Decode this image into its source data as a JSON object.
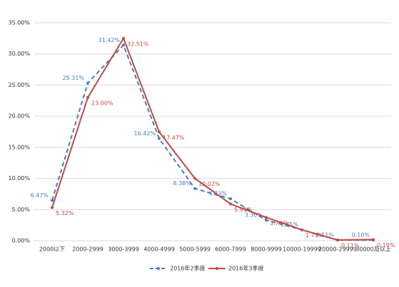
{
  "chart_data": {
    "type": "line",
    "categories": [
      "2000以下",
      "2000-2999",
      "3000-3999",
      "4000-4999",
      "5000-5999",
      "6000-7999",
      "8000-9999",
      "10000-19999",
      "20000-29999",
      "30000及以上"
    ],
    "series": [
      {
        "name": "2016年2季度",
        "color": "#4a7ebb",
        "dashed": true,
        "values": [
          6.47,
          25.31,
          31.42,
          16.42,
          8.38,
          6.73,
          3.3,
          1.75,
          0.11,
          0.1
        ],
        "value_labels": [
          "6.47%",
          "25.31%",
          "31.42%",
          "16.42%",
          "8.38%",
          "6.73%",
          "3.30%",
          "1.75%",
          "0.11%",
          "0.10%"
        ]
      },
      {
        "name": "2016年3季度",
        "color": "#be4b48",
        "dashed": false,
        "values": [
          5.32,
          23.0,
          32.51,
          17.47,
          10.02,
          5.91,
          3.74,
          1.75,
          0.11,
          0.19
        ],
        "value_labels": [
          "5.32%",
          "23.00%",
          "32.51%",
          "17.47%",
          "10.02%",
          "5.91%",
          "3.74%",
          "1.75%",
          "0.11%",
          "0.19%"
        ]
      }
    ],
    "ylim": [
      0,
      35
    ],
    "yticks": [
      {
        "value": 0,
        "label": "0.00%"
      },
      {
        "value": 5,
        "label": "5.00%"
      },
      {
        "value": 10,
        "label": "10.00%"
      },
      {
        "value": 15,
        "label": "15.00%"
      },
      {
        "value": 20,
        "label": "20.00%"
      },
      {
        "value": 25,
        "label": "25.00%"
      },
      {
        "value": 30,
        "label": "30.00%"
      },
      {
        "value": 35,
        "label": "35.00%"
      }
    ],
    "grid": true,
    "legend": "bottom"
  }
}
